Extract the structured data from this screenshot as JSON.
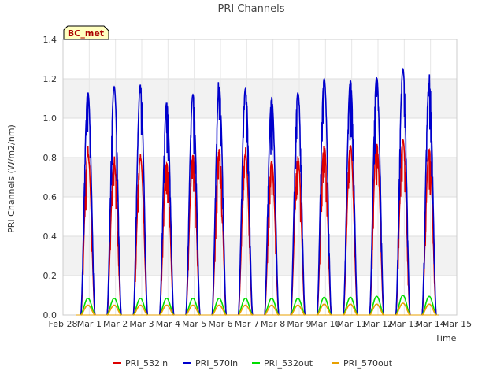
{
  "chart_data": {
    "type": "line",
    "title": "PRI Channels",
    "xlabel": "Time",
    "ylabel": "PRI Channels (W/m2/nm)",
    "ylim": [
      0.0,
      1.4
    ],
    "xlim": [
      0,
      15
    ],
    "yticks": [
      0.0,
      0.2,
      0.4,
      0.6,
      0.8,
      1.0,
      1.2,
      1.4
    ],
    "ytick_labels": [
      "0.0",
      "0.2",
      "0.4",
      "0.6",
      "0.8",
      "1.0",
      "1.2",
      "1.4"
    ],
    "xticks": [
      0,
      1,
      2,
      3,
      4,
      5,
      6,
      7,
      8,
      9,
      10,
      11,
      12,
      13,
      14,
      15
    ],
    "xtick_labels": [
      "Feb 28",
      "Mar 1",
      "Mar 2",
      "Mar 3",
      "Mar 4",
      "Mar 5",
      "Mar 6",
      "Mar 7",
      "Mar 8",
      "Mar 9",
      "Mar 10",
      "Mar 11",
      "Mar 12",
      "Mar 13",
      "Mar 14",
      "Mar 15"
    ],
    "annotation": "BC_met",
    "grid": true,
    "legend_position": "bottom-center",
    "day_centers": [
      0.95,
      1.95,
      2.95,
      3.95,
      4.95,
      5.95,
      6.95,
      7.95,
      8.95,
      9.95,
      10.95,
      11.95,
      12.95,
      13.95
    ],
    "series": [
      {
        "name": "PRI_532in",
        "color": "#dd0000",
        "daily_peaks": [
          0.82,
          0.77,
          0.8,
          0.77,
          0.81,
          0.84,
          0.82,
          0.78,
          0.8,
          0.86,
          0.86,
          0.87,
          0.89,
          0.84
        ]
      },
      {
        "name": "PRI_570in",
        "color": "#0000cc",
        "daily_peaks": [
          1.13,
          1.16,
          1.17,
          1.08,
          1.12,
          1.16,
          1.15,
          1.1,
          1.13,
          1.2,
          1.19,
          1.21,
          1.25,
          1.18
        ]
      },
      {
        "name": "PRI_532out",
        "color": "#00dd00",
        "daily_peaks": [
          0.085,
          0.085,
          0.085,
          0.085,
          0.085,
          0.085,
          0.085,
          0.085,
          0.085,
          0.09,
          0.09,
          0.095,
          0.1,
          0.095
        ]
      },
      {
        "name": "PRI_570out",
        "color": "#e8a000",
        "daily_peaks": [
          0.05,
          0.05,
          0.05,
          0.05,
          0.05,
          0.05,
          0.05,
          0.05,
          0.05,
          0.055,
          0.055,
          0.055,
          0.06,
          0.055
        ]
      }
    ]
  }
}
